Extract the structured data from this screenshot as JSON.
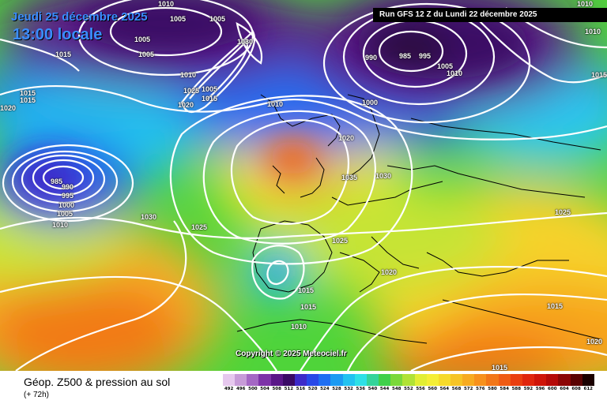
{
  "header": {
    "date": "Jeudi 25 décembre 2025",
    "time": "13:00 locale",
    "run": "Run GFS 12 Z du Lundi 22 décembre 2025"
  },
  "copyright": "Copyright © 2025 Meteociel.fr",
  "footer": {
    "title": "Géop. Z500 & pression au sol",
    "subtitle": "(+ 72h)"
  },
  "colors": {
    "deep_low": "#2b0a3d",
    "low": "#7a1aa8",
    "blue": "#1c3fe0",
    "cyan": "#29c7f0",
    "green": "#4fd43a",
    "yellow": "#f2f236",
    "orange": "#f7a21e",
    "high": "#f06a10",
    "isobar": "#ffffff"
  },
  "scale": {
    "values": [
      "492",
      "496",
      "500",
      "504",
      "508",
      "512",
      "516",
      "520",
      "524",
      "528",
      "532",
      "536",
      "540",
      "544",
      "548",
      "552",
      "556",
      "560",
      "564",
      "568",
      "572",
      "576",
      "580",
      "584",
      "588",
      "592",
      "596",
      "600",
      "604",
      "608",
      "612"
    ],
    "colors": [
      "#e6c8ee",
      "#c79bd8",
      "#a467c4",
      "#7d33a8",
      "#5a1688",
      "#3a0a65",
      "#3d2ac9",
      "#2848e8",
      "#1f6ef2",
      "#1c9af2",
      "#22c2f0",
      "#2ee0e6",
      "#33d49a",
      "#3fd04a",
      "#7ad83a",
      "#b0e235",
      "#e2ee33",
      "#f5ee35",
      "#f6da2a",
      "#f6c425",
      "#f7ab20",
      "#f7911c",
      "#f27617",
      "#ef5b14",
      "#ea3f10",
      "#e0260d",
      "#cf1509",
      "#b50a08",
      "#8c0606",
      "#5a0303",
      "#1a0000"
    ]
  },
  "isobars": [
    {
      "value": "1010",
      "text": "1010"
    },
    {
      "value": "1005",
      "text": "1005"
    },
    {
      "value": "1005",
      "text": "1005"
    },
    {
      "value": "1005",
      "text": "1005"
    },
    {
      "value": "1005",
      "text": "1005"
    },
    {
      "value": "1015",
      "text": "1015"
    },
    {
      "value": "1010",
      "text": "1010"
    },
    {
      "value": "1030",
      "text": "1030"
    },
    {
      "value": "1025",
      "text": "1025"
    },
    {
      "value": "1020",
      "text": "1020"
    },
    {
      "value": "1015",
      "text": "1015"
    },
    {
      "value": "1005",
      "text": "1005"
    },
    {
      "value": "1015",
      "text": "1015"
    },
    {
      "value": "1015",
      "text": "1015"
    },
    {
      "value": "1020",
      "text": "1020"
    },
    {
      "value": "990",
      "text": "990"
    },
    {
      "value": "985",
      "text": "985"
    },
    {
      "value": "995",
      "text": "995"
    },
    {
      "value": "1005",
      "text": "1005"
    },
    {
      "value": "1010",
      "text": "1010"
    },
    {
      "value": "1000",
      "text": "1000"
    },
    {
      "value": "1010",
      "text": "1010"
    },
    {
      "value": "1015",
      "text": "1015"
    },
    {
      "value": "1010",
      "text": "1010"
    },
    {
      "value": "1020",
      "text": "1020"
    },
    {
      "value": "1035",
      "text": "1035"
    },
    {
      "value": "1030",
      "text": "1030"
    },
    {
      "value": "985",
      "text": "985"
    },
    {
      "value": "990",
      "text": "990"
    },
    {
      "value": "995",
      "text": "995"
    },
    {
      "value": "1000",
      "text": "1000"
    },
    {
      "value": "1005",
      "text": "1005"
    },
    {
      "value": "1010",
      "text": "1010"
    },
    {
      "value": "1030",
      "text": "1030"
    },
    {
      "value": "1025",
      "text": "1025"
    },
    {
      "value": "1025",
      "text": "1025"
    },
    {
      "value": "1025",
      "text": "1025"
    },
    {
      "value": "1020",
      "text": "1020"
    },
    {
      "value": "1015",
      "text": "1015"
    },
    {
      "value": "1015",
      "text": "1015"
    },
    {
      "value": "1010",
      "text": "1010"
    },
    {
      "value": "1015",
      "text": "1015"
    },
    {
      "value": "1010",
      "text": "1010"
    },
    {
      "value": "1015",
      "text": "1015"
    },
    {
      "value": "1020",
      "text": "1020"
    }
  ]
}
